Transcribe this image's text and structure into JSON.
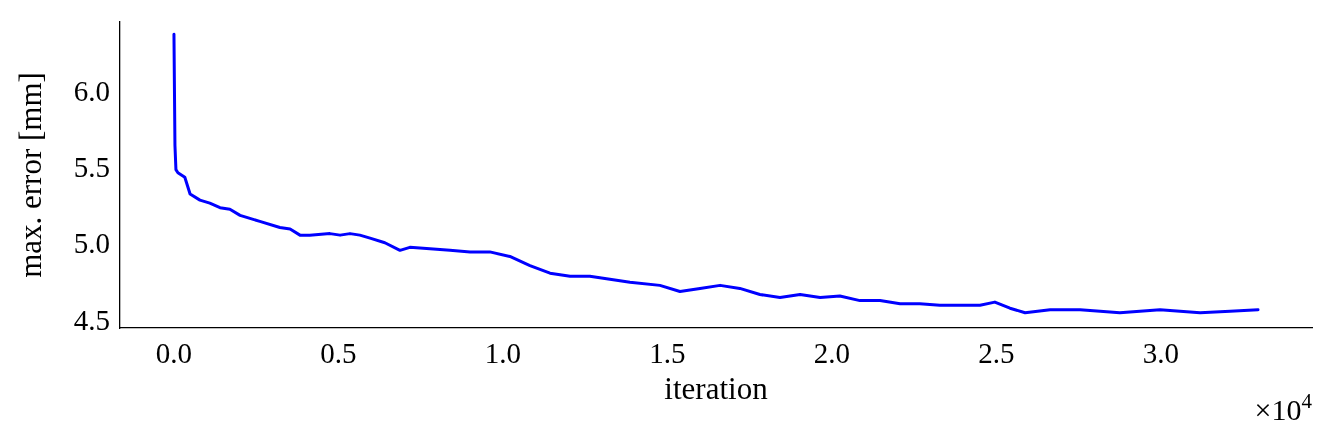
{
  "chart_data": {
    "type": "line",
    "xlabel": "iteration",
    "ylabel": "max. error [mm]",
    "annotations": [
      "×10$^{4}$"
    ],
    "xlim": [
      -0.164,
      3.459
    ],
    "ylim": [
      4.46,
      6.47
    ],
    "xticks": [
      {
        "value": 0,
        "label": "0.0"
      },
      0.5,
      {
        "value": 1,
        "label": "1.0"
      },
      1.5,
      {
        "value": 2,
        "label": "2.0"
      },
      2.5,
      {
        "value": 3,
        "label": "3.0"
      }
    ],
    "yticks": [
      4.5,
      {
        "value": 5,
        "label": "5.0"
      },
      5.5,
      {
        "value": 6,
        "label": "6.0"
      }
    ],
    "grid": false,
    "legend": false,
    "marker": "none",
    "line_style": "solid",
    "series": [
      {
        "color": "#0000ff",
        "x": [
          0,
          0.003,
          0.006,
          0.012,
          0.033,
          0.049,
          0.079,
          0.109,
          0.14,
          0.17,
          0.201,
          0.231,
          0.261,
          0.322,
          0.353,
          0.383,
          0.413,
          0.474,
          0.505,
          0.535,
          0.565,
          0.596,
          0.641,
          0.687,
          0.717,
          0.778,
          0.839,
          0.9,
          0.96,
          1.021,
          1.082,
          1.143,
          1.204,
          1.264,
          1.325,
          1.386,
          1.477,
          1.538,
          1.599,
          1.66,
          1.72,
          1.781,
          1.842,
          1.903,
          1.964,
          2.024,
          2.085,
          2.146,
          2.207,
          2.267,
          2.328,
          2.389,
          2.45,
          2.495,
          2.541,
          2.587,
          2.663,
          2.754,
          2.815,
          2.875,
          2.936,
          2.997,
          3.058,
          3.119,
          3.21,
          3.295
        ],
        "values": [
          6.39,
          5.66,
          5.5,
          5.48,
          5.45,
          5.34,
          5.3,
          5.28,
          5.25,
          5.24,
          5.2,
          5.18,
          5.16,
          5.12,
          5.11,
          5.07,
          5.07,
          5.08,
          5.07,
          5.08,
          5.07,
          5.05,
          5.02,
          4.97,
          4.99,
          4.98,
          4.97,
          4.96,
          4.96,
          4.93,
          4.87,
          4.82,
          4.8,
          4.8,
          4.78,
          4.76,
          4.74,
          4.7,
          4.72,
          4.74,
          4.72,
          4.68,
          4.66,
          4.68,
          4.66,
          4.67,
          4.64,
          4.64,
          4.62,
          4.62,
          4.61,
          4.61,
          4.61,
          4.63,
          4.59,
          4.56,
          4.58,
          4.58,
          4.57,
          4.56,
          4.57,
          4.58,
          4.57,
          4.56,
          4.57,
          4.58
        ]
      }
    ]
  }
}
